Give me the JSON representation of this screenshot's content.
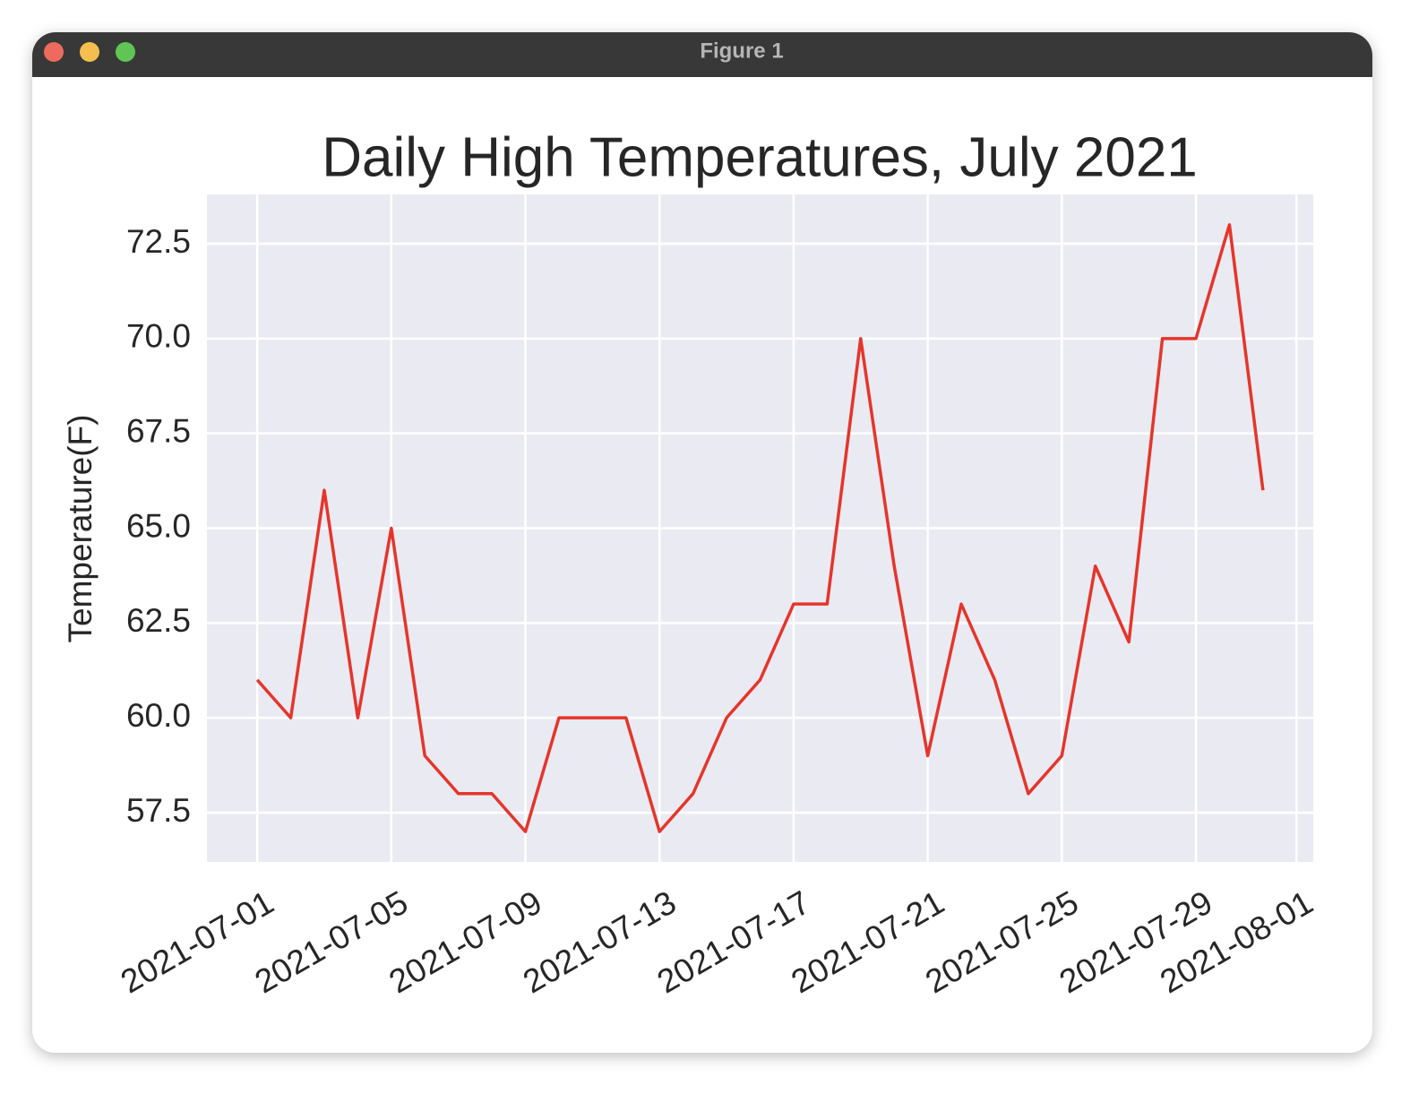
{
  "window_title": "Figure 1",
  "chart_data": {
    "type": "line",
    "title": "Daily High Temperatures, July 2021",
    "y_label": "Temperature(F)",
    "x": [
      "2021-07-01",
      "2021-07-02",
      "2021-07-03",
      "2021-07-04",
      "2021-07-05",
      "2021-07-06",
      "2021-07-07",
      "2021-07-08",
      "2021-07-09",
      "2021-07-10",
      "2021-07-11",
      "2021-07-12",
      "2021-07-13",
      "2021-07-14",
      "2021-07-15",
      "2021-07-16",
      "2021-07-17",
      "2021-07-18",
      "2021-07-19",
      "2021-07-20",
      "2021-07-21",
      "2021-07-22",
      "2021-07-23",
      "2021-07-24",
      "2021-07-25",
      "2021-07-26",
      "2021-07-27",
      "2021-07-28",
      "2021-07-29",
      "2021-07-30",
      "2021-07-31"
    ],
    "series": [
      {
        "name": "high",
        "color": "#e5352b",
        "values": [
          61,
          60,
          66,
          60,
          65,
          59,
          58,
          58,
          57,
          60,
          60,
          60,
          57,
          58,
          60,
          61,
          63,
          63,
          70,
          64,
          59,
          63,
          61,
          58,
          59,
          64,
          62,
          70,
          70,
          73,
          66
        ]
      }
    ],
    "xlim": [
      "2021-06-29T12:00",
      "2021-08-01T12:00"
    ],
    "xticks": [
      "2021-07-01",
      "2021-07-05",
      "2021-07-09",
      "2021-07-13",
      "2021-07-17",
      "2021-07-21",
      "2021-07-25",
      "2021-07-29",
      "2021-08-01"
    ],
    "ylim": [
      56.2,
      73.8
    ],
    "yticks": [
      {
        "value": 57.5,
        "label": "57.5"
      },
      {
        "value": 60,
        "label": "60.0"
      },
      {
        "value": 62.5,
        "label": "62.5"
      },
      {
        "value": 65,
        "label": "65.0"
      },
      {
        "value": 67.5,
        "label": "67.5"
      },
      {
        "value": 70,
        "label": "70.0"
      },
      {
        "value": 72.5,
        "label": "72.5"
      }
    ],
    "grid": true
  }
}
